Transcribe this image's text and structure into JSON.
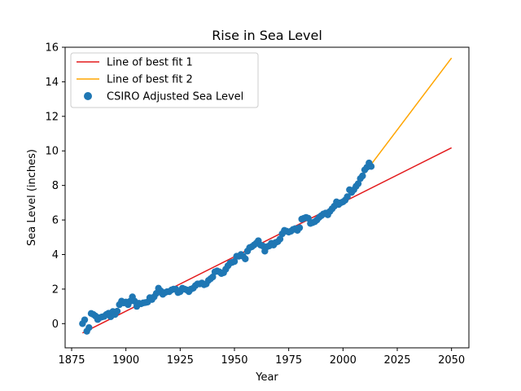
{
  "chart_data": {
    "type": "scatter",
    "title": "Rise in Sea Level",
    "xlabel": "Year",
    "ylabel": "Sea Level (inches)",
    "xlim": [
      1872,
      2058
    ],
    "ylim": [
      -1.4,
      16
    ],
    "xticks": [
      1875,
      1900,
      1925,
      1950,
      1975,
      2000,
      2025,
      2050
    ],
    "yticks": [
      0,
      2,
      4,
      6,
      8,
      10,
      12,
      14,
      16
    ],
    "legend_position": "top-left",
    "series": [
      {
        "name": "Line of best fit 1",
        "kind": "line",
        "color": "#e31a1c",
        "x": [
          1880,
          2050
        ],
        "y": [
          -0.54,
          10.18
        ]
      },
      {
        "name": "Line of best fit 2",
        "kind": "line",
        "color": "#ffa500",
        "x": [
          2000,
          2050
        ],
        "y": [
          7.06,
          15.38
        ]
      },
      {
        "name": "CSIRO Adjusted Sea Level",
        "kind": "scatter",
        "color": "#1f77b4",
        "points": [
          [
            1880,
            0.0
          ],
          [
            1881,
            0.22
          ],
          [
            1882,
            -0.44
          ],
          [
            1883,
            -0.23
          ],
          [
            1884,
            0.59
          ],
          [
            1885,
            0.53
          ],
          [
            1886,
            0.44
          ],
          [
            1887,
            0.24
          ],
          [
            1888,
            0.35
          ],
          [
            1889,
            0.39
          ],
          [
            1890,
            0.42
          ],
          [
            1891,
            0.53
          ],
          [
            1892,
            0.6
          ],
          [
            1893,
            0.4
          ],
          [
            1894,
            0.7
          ],
          [
            1895,
            0.53
          ],
          [
            1896,
            0.72
          ],
          [
            1897,
            1.1
          ],
          [
            1898,
            1.3
          ],
          [
            1899,
            1.2
          ],
          [
            1900,
            1.25
          ],
          [
            1901,
            1.1
          ],
          [
            1902,
            1.3
          ],
          [
            1903,
            1.55
          ],
          [
            1904,
            1.3
          ],
          [
            1905,
            1.0
          ],
          [
            1906,
            1.18
          ],
          [
            1907,
            1.15
          ],
          [
            1908,
            1.2
          ],
          [
            1909,
            1.22
          ],
          [
            1910,
            1.25
          ],
          [
            1911,
            1.5
          ],
          [
            1912,
            1.4
          ],
          [
            1913,
            1.55
          ],
          [
            1914,
            1.75
          ],
          [
            1915,
            2.05
          ],
          [
            1916,
            1.9
          ],
          [
            1917,
            1.7
          ],
          [
            1918,
            1.8
          ],
          [
            1919,
            1.85
          ],
          [
            1920,
            1.85
          ],
          [
            1921,
            1.95
          ],
          [
            1922,
            2.0
          ],
          [
            1923,
            2.0
          ],
          [
            1924,
            1.8
          ],
          [
            1925,
            1.85
          ],
          [
            1926,
            2.05
          ],
          [
            1927,
            2.0
          ],
          [
            1928,
            1.95
          ],
          [
            1929,
            1.85
          ],
          [
            1930,
            2.0
          ],
          [
            1931,
            2.05
          ],
          [
            1932,
            2.2
          ],
          [
            1933,
            2.3
          ],
          [
            1934,
            2.3
          ],
          [
            1935,
            2.35
          ],
          [
            1936,
            2.25
          ],
          [
            1937,
            2.3
          ],
          [
            1938,
            2.5
          ],
          [
            1939,
            2.6
          ],
          [
            1940,
            2.7
          ],
          [
            1941,
            3.0
          ],
          [
            1942,
            3.05
          ],
          [
            1943,
            3.0
          ],
          [
            1944,
            2.9
          ],
          [
            1945,
            2.95
          ],
          [
            1946,
            3.15
          ],
          [
            1947,
            3.35
          ],
          [
            1948,
            3.5
          ],
          [
            1949,
            3.55
          ],
          [
            1950,
            3.6
          ],
          [
            1951,
            3.9
          ],
          [
            1952,
            3.9
          ],
          [
            1953,
            4.0
          ],
          [
            1954,
            3.9
          ],
          [
            1955,
            3.75
          ],
          [
            1956,
            4.2
          ],
          [
            1957,
            4.4
          ],
          [
            1958,
            4.45
          ],
          [
            1959,
            4.55
          ],
          [
            1960,
            4.65
          ],
          [
            1961,
            4.8
          ],
          [
            1962,
            4.55
          ],
          [
            1963,
            4.5
          ],
          [
            1964,
            4.2
          ],
          [
            1965,
            4.45
          ],
          [
            1966,
            4.5
          ],
          [
            1967,
            4.65
          ],
          [
            1968,
            4.55
          ],
          [
            1969,
            4.7
          ],
          [
            1970,
            4.75
          ],
          [
            1971,
            4.9
          ],
          [
            1972,
            5.2
          ],
          [
            1973,
            5.4
          ],
          [
            1974,
            5.35
          ],
          [
            1975,
            5.3
          ],
          [
            1976,
            5.35
          ],
          [
            1977,
            5.45
          ],
          [
            1978,
            5.5
          ],
          [
            1979,
            5.4
          ],
          [
            1980,
            5.55
          ],
          [
            1981,
            6.05
          ],
          [
            1982,
            6.1
          ],
          [
            1983,
            6.15
          ],
          [
            1984,
            6.1
          ],
          [
            1985,
            5.8
          ],
          [
            1986,
            5.85
          ],
          [
            1987,
            5.9
          ],
          [
            1988,
            6.0
          ],
          [
            1989,
            6.15
          ],
          [
            1990,
            6.25
          ],
          [
            1991,
            6.35
          ],
          [
            1992,
            6.4
          ],
          [
            1993,
            6.3
          ],
          [
            1994,
            6.5
          ],
          [
            1995,
            6.65
          ],
          [
            1996,
            6.8
          ],
          [
            1997,
            7.05
          ],
          [
            1998,
            6.9
          ],
          [
            1999,
            7.0
          ],
          [
            2000,
            7.05
          ],
          [
            2001,
            7.15
          ],
          [
            2002,
            7.35
          ],
          [
            2003,
            7.75
          ],
          [
            2004,
            7.6
          ],
          [
            2005,
            7.75
          ],
          [
            2006,
            7.95
          ],
          [
            2007,
            8.1
          ],
          [
            2008,
            8.4
          ],
          [
            2009,
            8.55
          ],
          [
            2010,
            8.9
          ],
          [
            2011,
            9.05
          ],
          [
            2012,
            9.3
          ],
          [
            2013,
            9.1
          ]
        ]
      }
    ]
  }
}
